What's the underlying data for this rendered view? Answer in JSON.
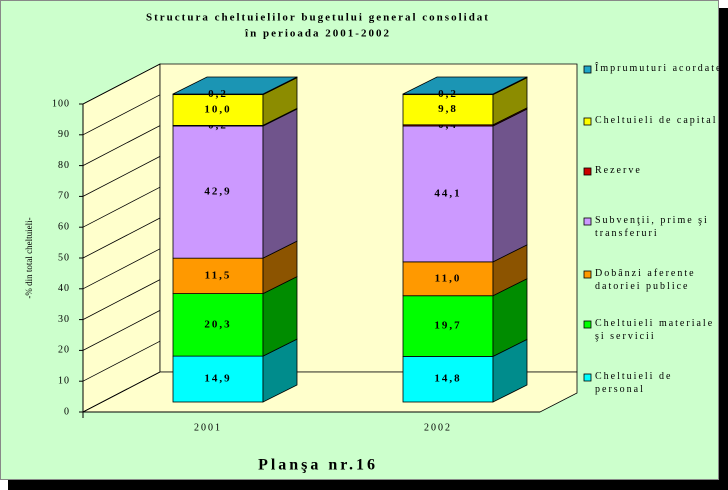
{
  "chart_data": {
    "type": "bar3d_stacked",
    "title": "Structura cheltuielilor bugetului general consolidat",
    "subtitle": "în perioada 2001-2002",
    "y_label": "-% din total cheltuieli-",
    "footer": "Planşa nr.16",
    "categories": [
      "2001",
      "2002"
    ],
    "ylim": [
      0,
      100
    ],
    "yticks": [
      0,
      10,
      20,
      30,
      40,
      50,
      60,
      70,
      80,
      90,
      100
    ],
    "legend": "right",
    "series": [
      {
        "name": "Cheltuieli de personal",
        "color": "#00FFFF",
        "values": [
          14.9,
          14.8
        ],
        "value_labels": [
          "14,9",
          "14,8"
        ]
      },
      {
        "name": "Cheltuieli materiale şi servicii",
        "color": "#00FF00",
        "values": [
          20.3,
          19.7
        ],
        "value_labels": [
          "20,3",
          "19,7"
        ]
      },
      {
        "name": "Dobânzi aferente datoriei publice",
        "color": "#FF9900",
        "values": [
          11.5,
          11.0
        ],
        "value_labels": [
          "11,5",
          "11,0"
        ]
      },
      {
        "name": "Subvenţii, prime şi transferuri",
        "color": "#CC99FF",
        "values": [
          42.9,
          44.1
        ],
        "value_labels": [
          "42,9",
          "44,1"
        ]
      },
      {
        "name": "Rezerve",
        "color": "#CC0000",
        "values": [
          0.2,
          0.4
        ],
        "value_labels": [
          "0,2",
          "0,4"
        ]
      },
      {
        "name": "Cheltuieli de capital",
        "color": "#FFFF00",
        "values": [
          10.0,
          9.8
        ],
        "value_labels": [
          "10,0",
          "9,8"
        ]
      },
      {
        "name": "Împrumuturi acordate",
        "color": "#1EA6C8",
        "values": [
          0.2,
          0.2
        ],
        "value_labels": [
          "0,2",
          "0,2"
        ]
      }
    ]
  }
}
